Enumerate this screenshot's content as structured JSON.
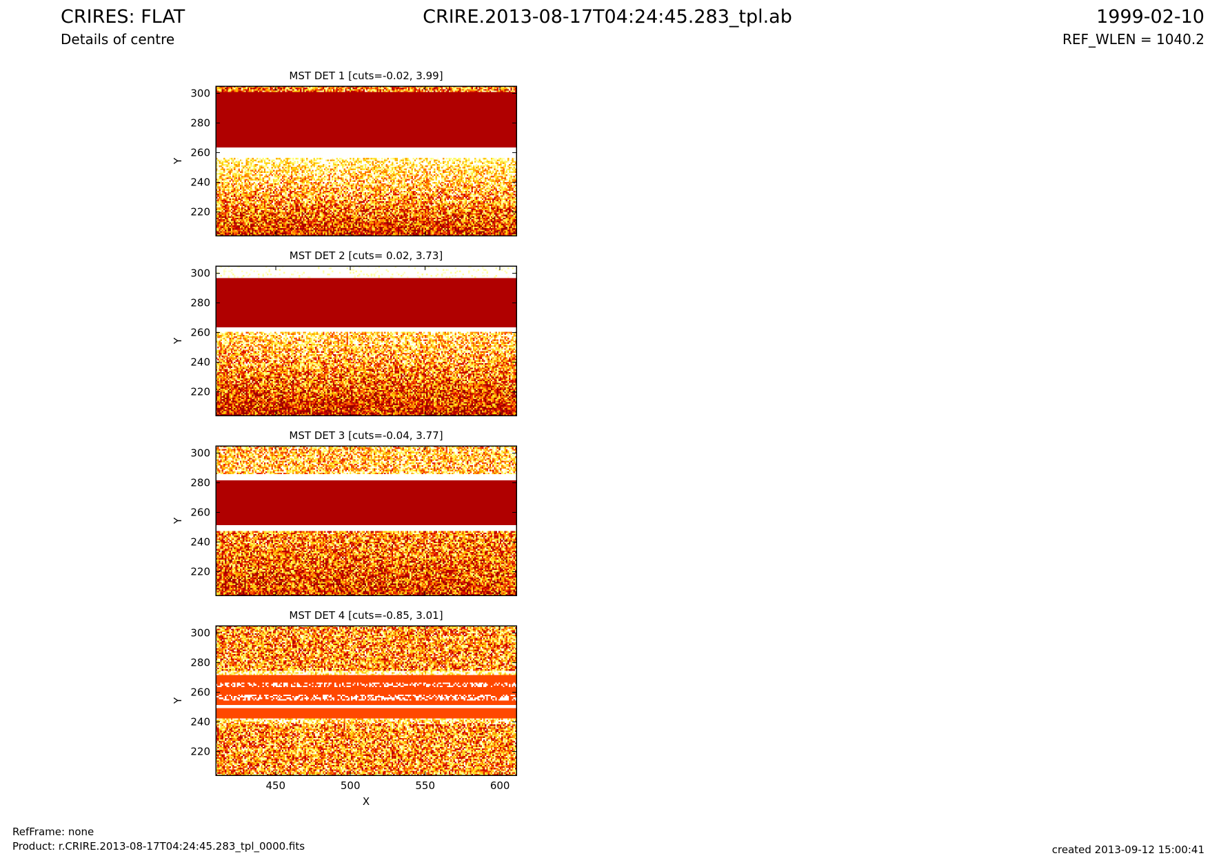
{
  "header": {
    "title": "CRIRES: FLAT",
    "subtitle": "Details of centre",
    "file": "CRIRE.2013-08-17T04:24:45.283_tpl.ab",
    "date": "1999-02-10",
    "ref_wlen": "REF_WLEN = 1040.2"
  },
  "footer": {
    "refframe": "RefFrame: none",
    "product": "Product: r.CRIRE.2013-08-17T04:24:45.283_tpl_0000.fits",
    "created": "created 2013-09-12 15:00:41"
  },
  "chart_data": [
    {
      "type": "heatmap",
      "title": "MST DET 1 [cuts=-0.02, 3.99]",
      "ylabel": "Y",
      "xlim": [
        410,
        611
      ],
      "ylim": [
        204,
        305
      ],
      "xticks": [
        450,
        500,
        550,
        600
      ],
      "yticks": [
        220,
        240,
        260,
        280,
        300
      ]
    },
    {
      "type": "heatmap",
      "title": "MST DET 2 [cuts= 0.02, 3.73]",
      "ylabel": "Y",
      "xlim": [
        410,
        611
      ],
      "ylim": [
        204,
        305
      ],
      "xticks": [
        450,
        500,
        550,
        600
      ],
      "yticks": [
        220,
        240,
        260,
        280,
        300
      ]
    },
    {
      "type": "heatmap",
      "title": "MST DET 3 [cuts=-0.04, 3.77]",
      "ylabel": "Y",
      "xlim": [
        410,
        611
      ],
      "ylim": [
        204,
        305
      ],
      "xticks": [
        450,
        500,
        550,
        600
      ],
      "yticks": [
        220,
        240,
        260,
        280,
        300
      ]
    },
    {
      "type": "heatmap",
      "title": "MST DET 4 [cuts=-0.85, 3.01]",
      "ylabel": "Y",
      "xlabel": "X",
      "xlim": [
        410,
        611
      ],
      "ylim": [
        204,
        305
      ],
      "xticks": [
        450,
        500,
        550,
        600
      ],
      "yticks": [
        220,
        240,
        260,
        280,
        300
      ]
    }
  ]
}
